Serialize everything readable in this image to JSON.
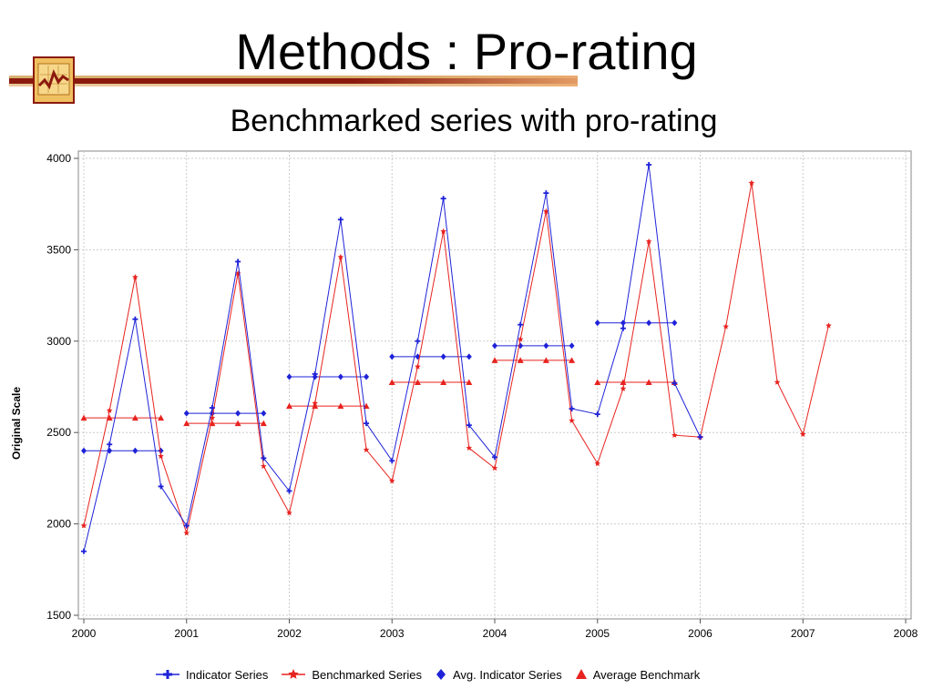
{
  "slide": {
    "title": "Methods : Pro-rating",
    "subtitle": "Benchmarked series with pro-rating"
  },
  "colors": {
    "indicator": "#1e22d8",
    "benchmark": "#e8221e",
    "title_bar": "#8b1a0e"
  },
  "icons": {
    "logo": "chart-line-logo-icon"
  },
  "chart_data": {
    "type": "line",
    "title": "",
    "xlabel": "",
    "ylabel": "Original Scale",
    "xlim": [
      2000,
      2008
    ],
    "ylim": [
      1500,
      4000
    ],
    "x_ticks": [
      "2000",
      "2001",
      "2002",
      "2003",
      "2004",
      "2005",
      "2006",
      "2007",
      "2008"
    ],
    "y_ticks": [
      "1500",
      "2000",
      "2500",
      "3000",
      "3500",
      "4000"
    ],
    "grid": true,
    "legend_position": "bottom",
    "series": [
      {
        "name": "Indicator Series",
        "marker": "plus",
        "color": "#1e22d8",
        "points": [
          [
            2000.0,
            1850
          ],
          [
            2000.25,
            2435
          ],
          [
            2000.5,
            3120
          ],
          [
            2000.75,
            2205
          ],
          [
            2001.0,
            1990
          ],
          [
            2001.25,
            2635
          ],
          [
            2001.5,
            3435
          ],
          [
            2001.75,
            2360
          ],
          [
            2002.0,
            2180
          ],
          [
            2002.25,
            2820
          ],
          [
            2002.5,
            3665
          ],
          [
            2002.75,
            2550
          ],
          [
            2003.0,
            2345
          ],
          [
            2003.25,
            3000
          ],
          [
            2003.5,
            3780
          ],
          [
            2003.75,
            2540
          ],
          [
            2004.0,
            2365
          ],
          [
            2004.25,
            3090
          ],
          [
            2004.5,
            3810
          ],
          [
            2004.75,
            2630
          ],
          [
            2005.0,
            2600
          ],
          [
            2005.25,
            3070
          ],
          [
            2005.5,
            3965
          ],
          [
            2005.75,
            2770
          ],
          [
            2006.0,
            2475
          ]
        ]
      },
      {
        "name": "Benchmarked Series",
        "marker": "star",
        "color": "#e8221e",
        "points": [
          [
            2000.0,
            1990
          ],
          [
            2000.25,
            2620
          ],
          [
            2000.5,
            3350
          ],
          [
            2000.75,
            2370
          ],
          [
            2001.0,
            1950
          ],
          [
            2001.25,
            2580
          ],
          [
            2001.5,
            3370
          ],
          [
            2001.75,
            2315
          ],
          [
            2002.0,
            2060
          ],
          [
            2002.25,
            2660
          ],
          [
            2002.5,
            3460
          ],
          [
            2002.75,
            2405
          ],
          [
            2003.0,
            2235
          ],
          [
            2003.25,
            2860
          ],
          [
            2003.5,
            3600
          ],
          [
            2003.75,
            2415
          ],
          [
            2004.0,
            2305
          ],
          [
            2004.25,
            3010
          ],
          [
            2004.5,
            3710
          ],
          [
            2004.75,
            2565
          ],
          [
            2005.0,
            2330
          ],
          [
            2005.25,
            2740
          ],
          [
            2005.5,
            3545
          ],
          [
            2005.75,
            2485
          ],
          [
            2006.0,
            2475
          ],
          [
            2006.25,
            3080
          ],
          [
            2006.5,
            3865
          ],
          [
            2006.75,
            2775
          ],
          [
            2007.0,
            2490
          ],
          [
            2007.25,
            3085
          ]
        ]
      },
      {
        "name": "Avg. Indicator Series",
        "marker": "diamond",
        "color": "#1e22d8",
        "segments": [
          {
            "x": [
              2000.0,
              2000.25,
              2000.5,
              2000.75
            ],
            "y": 2400
          },
          {
            "x": [
              2001.0,
              2001.25,
              2001.5,
              2001.75
            ],
            "y": 2605
          },
          {
            "x": [
              2002.0,
              2002.25,
              2002.5,
              2002.75
            ],
            "y": 2805
          },
          {
            "x": [
              2003.0,
              2003.25,
              2003.5,
              2003.75
            ],
            "y": 2915
          },
          {
            "x": [
              2004.0,
              2004.25,
              2004.5,
              2004.75
            ],
            "y": 2975
          },
          {
            "x": [
              2005.0,
              2005.25,
              2005.5,
              2005.75
            ],
            "y": 3100
          }
        ]
      },
      {
        "name": "Average Benchmark",
        "marker": "triangle",
        "color": "#e8221e",
        "segments": [
          {
            "x": [
              2000.0,
              2000.25,
              2000.5,
              2000.75
            ],
            "y": 2580
          },
          {
            "x": [
              2001.0,
              2001.25,
              2001.5,
              2001.75
            ],
            "y": 2550
          },
          {
            "x": [
              2002.0,
              2002.25,
              2002.5,
              2002.75
            ],
            "y": 2645
          },
          {
            "x": [
              2003.0,
              2003.25,
              2003.5,
              2003.75
            ],
            "y": 2775
          },
          {
            "x": [
              2004.0,
              2004.25,
              2004.5,
              2004.75
            ],
            "y": 2895
          },
          {
            "x": [
              2005.0,
              2005.25,
              2005.5,
              2005.75
            ],
            "y": 2775
          }
        ]
      }
    ]
  }
}
